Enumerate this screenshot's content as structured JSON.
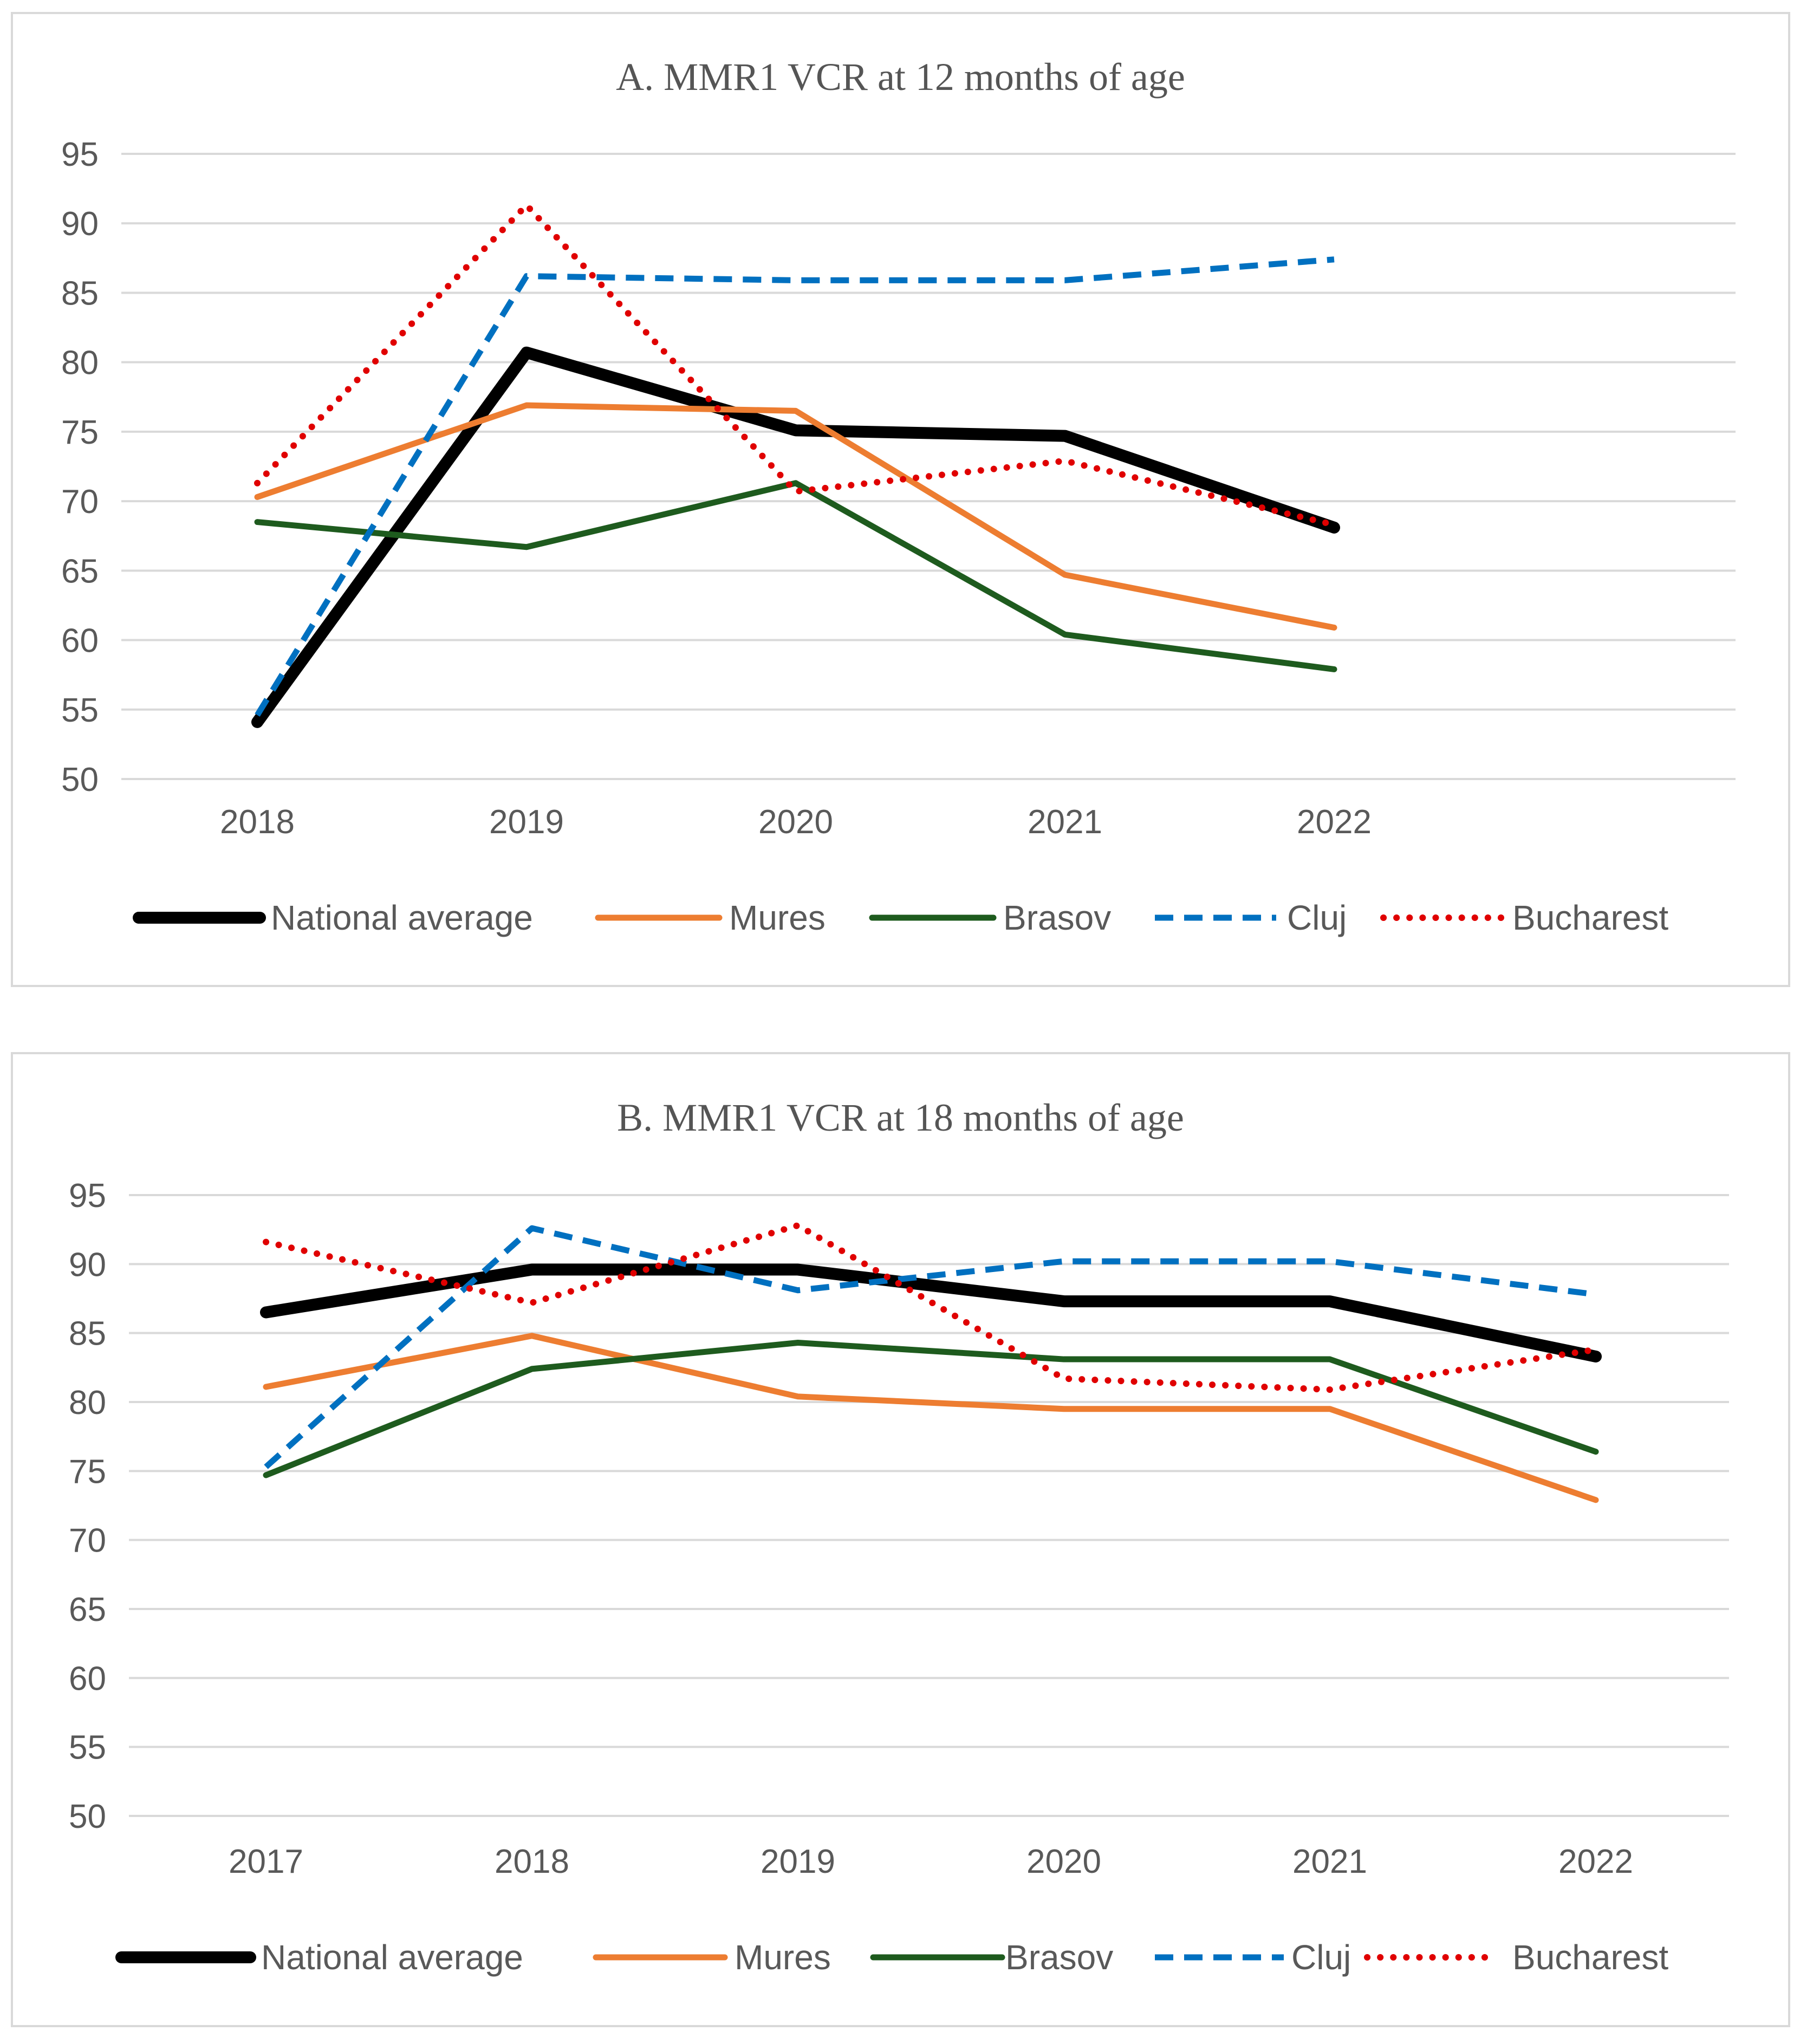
{
  "chart_data": [
    {
      "type": "line",
      "title": "A. MMR1 VCR at 12 months of age",
      "xlabel": "",
      "ylabel": "",
      "categories": [
        "2018",
        "2019",
        "2020",
        "2021",
        "2022"
      ],
      "ylim": [
        50,
        95
      ],
      "yticks": [
        50,
        55,
        60,
        65,
        70,
        75,
        80,
        85,
        90,
        95
      ],
      "grid": true,
      "legend": "bottom",
      "series": [
        {
          "name": "National average",
          "values": [
            54.1,
            80.7,
            75.1,
            74.7,
            68.1
          ],
          "color": "#000000",
          "style": "solid-thick"
        },
        {
          "name": "Mures",
          "values": [
            70.3,
            76.9,
            76.5,
            64.7,
            60.9
          ],
          "color": "#ed7d31",
          "style": "solid"
        },
        {
          "name": "Brasov",
          "values": [
            68.5,
            66.7,
            71.3,
            60.4,
            57.9
          ],
          "color": "#1e5b1e",
          "style": "solid"
        },
        {
          "name": "Cluj",
          "values": [
            54.6,
            86.2,
            85.9,
            85.9,
            87.4
          ],
          "color": "#0070c0",
          "style": "dashed"
        },
        {
          "name": "Bucharest",
          "values": [
            71.3,
            91.3,
            70.7,
            72.9,
            68.3
          ],
          "color": "#e00000",
          "style": "dotted"
        }
      ]
    },
    {
      "type": "line",
      "title": "B. MMR1 VCR at 18 months of age",
      "xlabel": "",
      "ylabel": "",
      "categories": [
        "2017",
        "2018",
        "2019",
        "2020",
        "2021",
        "2022"
      ],
      "ylim": [
        50,
        95
      ],
      "yticks": [
        50,
        55,
        60,
        65,
        70,
        75,
        80,
        85,
        90,
        95
      ],
      "grid": true,
      "legend": "bottom",
      "series": [
        {
          "name": "National average",
          "values": [
            86.5,
            89.6,
            89.6,
            87.3,
            87.3,
            83.3
          ],
          "color": "#000000",
          "style": "solid-thick"
        },
        {
          "name": "Mures",
          "values": [
            81.1,
            84.8,
            80.4,
            79.5,
            79.5,
            72.9
          ],
          "color": "#ed7d31",
          "style": "solid"
        },
        {
          "name": "Brasov",
          "values": [
            74.7,
            82.4,
            84.3,
            83.1,
            83.1,
            76.4
          ],
          "color": "#1e5b1e",
          "style": "solid"
        },
        {
          "name": "Cluj",
          "values": [
            75.3,
            92.6,
            88.1,
            90.2,
            90.2,
            87.8
          ],
          "color": "#0070c0",
          "style": "dashed"
        },
        {
          "name": "Bucharest",
          "values": [
            91.6,
            87.2,
            92.8,
            81.7,
            80.9,
            83.8
          ],
          "color": "#e00000",
          "style": "dotted"
        }
      ]
    }
  ]
}
